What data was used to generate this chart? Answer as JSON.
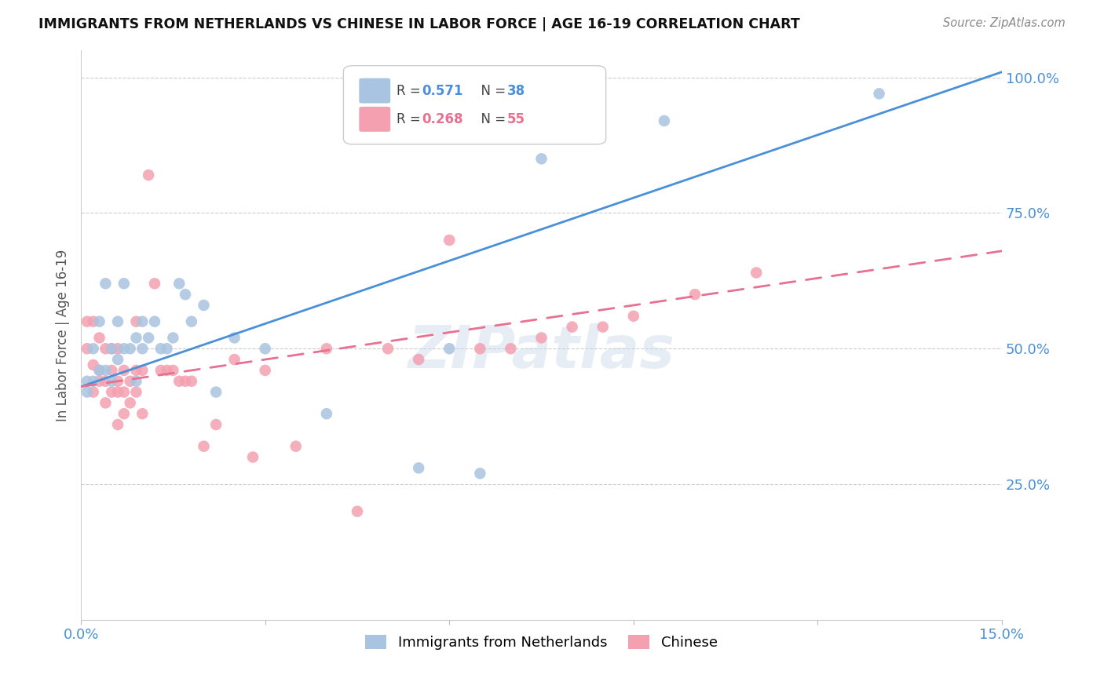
{
  "title": "IMMIGRANTS FROM NETHERLANDS VS CHINESE IN LABOR FORCE | AGE 16-19 CORRELATION CHART",
  "source": "Source: ZipAtlas.com",
  "ylabel_label": "In Labor Force | Age 16-19",
  "xlim": [
    0.0,
    0.15
  ],
  "ylim": [
    0.0,
    1.05
  ],
  "xticks": [
    0.0,
    0.03,
    0.06,
    0.09,
    0.12,
    0.15
  ],
  "xtick_labels": [
    "0.0%",
    "",
    "",
    "",
    "",
    "15.0%"
  ],
  "yticks": [
    0.0,
    0.25,
    0.5,
    0.75,
    1.0
  ],
  "ytick_labels": [
    "",
    "25.0%",
    "50.0%",
    "75.0%",
    "100.0%"
  ],
  "R_netherlands": 0.571,
  "N_netherlands": 38,
  "R_chinese": 0.268,
  "N_chinese": 55,
  "color_netherlands": "#a8c4e0",
  "color_chinese": "#f4a0b0",
  "line_color_netherlands": "#4a90d9",
  "line_color_chinese": "#e87090",
  "nl_line_x": [
    0.0,
    0.15
  ],
  "nl_line_y": [
    0.43,
    1.01
  ],
  "ch_line_x": [
    0.0,
    0.15
  ],
  "ch_line_y": [
    0.43,
    0.68
  ],
  "netherlands_x": [
    0.001,
    0.001,
    0.002,
    0.002,
    0.003,
    0.003,
    0.004,
    0.004,
    0.005,
    0.005,
    0.006,
    0.006,
    0.007,
    0.007,
    0.008,
    0.009,
    0.009,
    0.01,
    0.01,
    0.011,
    0.012,
    0.013,
    0.014,
    0.015,
    0.016,
    0.017,
    0.018,
    0.02,
    0.022,
    0.025,
    0.03,
    0.04,
    0.055,
    0.06,
    0.065,
    0.075,
    0.095,
    0.13
  ],
  "netherlands_y": [
    0.42,
    0.44,
    0.44,
    0.5,
    0.46,
    0.55,
    0.46,
    0.62,
    0.44,
    0.5,
    0.48,
    0.55,
    0.5,
    0.62,
    0.5,
    0.44,
    0.52,
    0.5,
    0.55,
    0.52,
    0.55,
    0.5,
    0.5,
    0.52,
    0.62,
    0.6,
    0.55,
    0.58,
    0.42,
    0.52,
    0.5,
    0.38,
    0.28,
    0.5,
    0.27,
    0.85,
    0.92,
    0.97
  ],
  "chinese_x": [
    0.001,
    0.001,
    0.002,
    0.002,
    0.002,
    0.003,
    0.003,
    0.003,
    0.004,
    0.004,
    0.004,
    0.005,
    0.005,
    0.005,
    0.006,
    0.006,
    0.006,
    0.006,
    0.007,
    0.007,
    0.007,
    0.008,
    0.008,
    0.009,
    0.009,
    0.009,
    0.01,
    0.01,
    0.011,
    0.012,
    0.013,
    0.014,
    0.015,
    0.016,
    0.017,
    0.018,
    0.02,
    0.022,
    0.025,
    0.028,
    0.03,
    0.035,
    0.04,
    0.045,
    0.05,
    0.055,
    0.06,
    0.065,
    0.07,
    0.075,
    0.08,
    0.085,
    0.09,
    0.1,
    0.11
  ],
  "chinese_y": [
    0.5,
    0.55,
    0.42,
    0.47,
    0.55,
    0.44,
    0.46,
    0.52,
    0.4,
    0.44,
    0.5,
    0.42,
    0.46,
    0.5,
    0.36,
    0.42,
    0.44,
    0.5,
    0.38,
    0.42,
    0.46,
    0.4,
    0.44,
    0.42,
    0.46,
    0.55,
    0.38,
    0.46,
    0.82,
    0.62,
    0.46,
    0.46,
    0.46,
    0.44,
    0.44,
    0.44,
    0.32,
    0.36,
    0.48,
    0.3,
    0.46,
    0.32,
    0.5,
    0.2,
    0.5,
    0.48,
    0.7,
    0.5,
    0.5,
    0.52,
    0.54,
    0.54,
    0.56,
    0.6,
    0.64
  ]
}
